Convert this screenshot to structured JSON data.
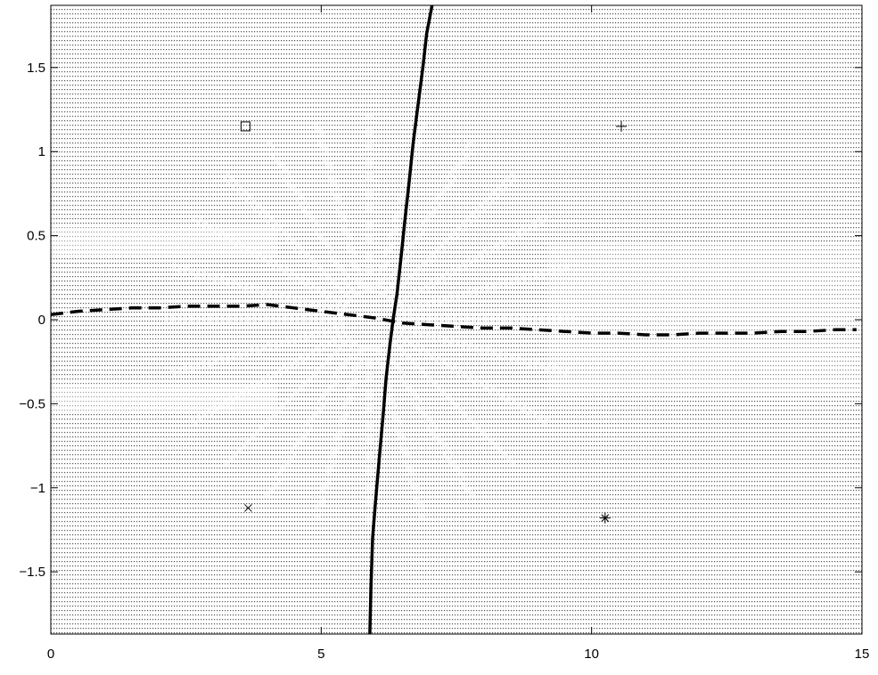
{
  "chart_data": {
    "type": "line",
    "title": "",
    "xlabel": "",
    "ylabel": "",
    "xlim": [
      0,
      15
    ],
    "ylim": [
      -1.87,
      1.87
    ],
    "xticks": [
      0,
      5,
      10,
      15
    ],
    "xtick_labels": [
      "0",
      "5",
      "10",
      "15"
    ],
    "yticks": [
      1.5,
      1,
      0.5,
      0,
      -0.5,
      -1,
      -1.5
    ],
    "ytick_labels": [
      "1.5",
      "1",
      "0.5",
      "0",
      "−0.5",
      "−1",
      "−1.5"
    ],
    "grid": false,
    "background": "dense dotted field with lighter radial pattern around x≈6",
    "series": [
      {
        "style": "solid-thick",
        "x": [
          5.9,
          5.92,
          5.95,
          6.0,
          6.08,
          6.15,
          6.2,
          6.27,
          6.33,
          6.4,
          6.47,
          6.55,
          6.62,
          6.7,
          6.8,
          6.88,
          6.95,
          7.05
        ],
        "y": [
          -1.87,
          -1.6,
          -1.3,
          -1.1,
          -0.8,
          -0.55,
          -0.35,
          -0.15,
          0.0,
          0.15,
          0.35,
          0.6,
          0.8,
          1.05,
          1.3,
          1.5,
          1.7,
          1.87
        ]
      },
      {
        "style": "dashed-thick",
        "x": [
          0,
          0.5,
          1,
          1.5,
          2,
          2.5,
          3,
          3.5,
          4,
          4.5,
          5,
          5.5,
          6,
          6.5,
          7,
          7.5,
          8,
          8.5,
          9,
          9.5,
          10,
          10.5,
          11,
          11.5,
          12,
          12.5,
          13,
          13.5,
          14,
          14.5,
          14.9
        ],
        "y": [
          0.03,
          0.05,
          0.06,
          0.07,
          0.07,
          0.08,
          0.08,
          0.08,
          0.09,
          0.07,
          0.05,
          0.03,
          0.01,
          -0.02,
          -0.03,
          -0.04,
          -0.05,
          -0.05,
          -0.06,
          -0.07,
          -0.08,
          -0.08,
          -0.09,
          -0.09,
          -0.08,
          -0.08,
          -0.08,
          -0.07,
          -0.07,
          -0.06,
          -0.06
        ]
      }
    ],
    "markers": [
      {
        "symbol": "square",
        "x": 3.6,
        "y": 1.15
      },
      {
        "symbol": "plus",
        "x": 10.55,
        "y": 1.15
      },
      {
        "symbol": "cross",
        "x": 3.65,
        "y": -1.12
      },
      {
        "symbol": "asterisk",
        "x": 10.25,
        "y": -1.18
      }
    ]
  }
}
